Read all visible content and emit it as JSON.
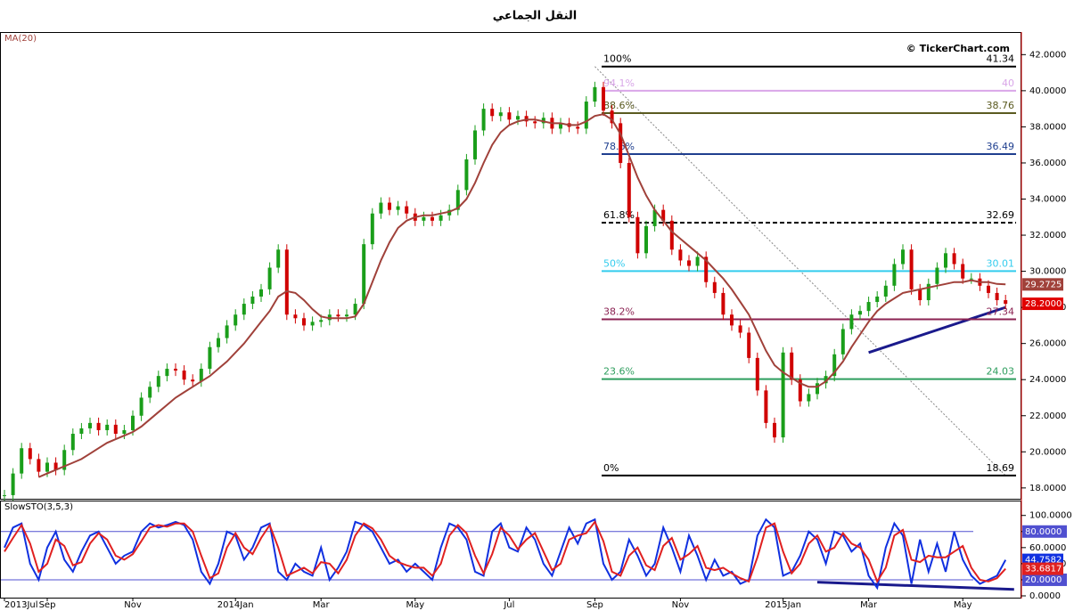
{
  "chart_data": [
    {
      "type": "candle",
      "title": "النقل الجماعي",
      "watermark": "© TickerChart.com",
      "indicator": "MA(20)",
      "ylim": [
        17.4,
        43.2
      ],
      "yticks": [
        {
          "value": 18,
          "label": "18.0000"
        },
        {
          "value": 20,
          "label": "20.0000"
        },
        {
          "value": 22,
          "label": "22.0000"
        },
        {
          "value": 24,
          "label": "24.0000"
        },
        {
          "value": 26,
          "label": "26.0000"
        },
        {
          "value": 28,
          "label": "28.0000"
        },
        {
          "value": 30,
          "label": "30.0000"
        },
        {
          "value": 32,
          "label": "32.0000"
        },
        {
          "value": 34,
          "label": "34.0000"
        },
        {
          "value": 36,
          "label": "36.0000"
        },
        {
          "value": 38,
          "label": "38.0000"
        },
        {
          "value": 40,
          "label": "40.0000"
        },
        {
          "value": 42,
          "label": "42.0000"
        }
      ],
      "xticks": [
        {
          "value": 0,
          "label": "2013Jul"
        },
        {
          "value": 5,
          "label": "Sep"
        },
        {
          "value": 15,
          "label": "Nov"
        },
        {
          "value": 27,
          "label": "2014Jan"
        },
        {
          "value": 37,
          "label": "Mar"
        },
        {
          "value": 48,
          "label": "May"
        },
        {
          "value": 59,
          "label": "Jul"
        },
        {
          "value": 69,
          "label": "Sep"
        },
        {
          "value": 79,
          "label": "Nov"
        },
        {
          "value": 91,
          "label": "2015Jan"
        },
        {
          "value": 101,
          "label": "Mar"
        },
        {
          "value": 112,
          "label": "May"
        }
      ],
      "series": [
        {
          "name": "Close",
          "up_color": "#1a9e1a",
          "down_color": "#d00000",
          "values": [
            17.6,
            18.8,
            20.2,
            19.6,
            18.9,
            19.4,
            19.0,
            20.1,
            21.0,
            21.3,
            21.6,
            21.2,
            21.5,
            21.0,
            21.2,
            22.0,
            23.0,
            23.6,
            24.2,
            24.6,
            24.5,
            24.0,
            23.9,
            24.6,
            25.8,
            26.3,
            27.0,
            27.6,
            28.2,
            28.6,
            29.0,
            30.2,
            31.2,
            27.6,
            27.4,
            27.0,
            27.2,
            27.3,
            27.6,
            27.5,
            27.6,
            28.2,
            31.5,
            33.2,
            33.8,
            33.4,
            33.6,
            33.2,
            32.8,
            33.0,
            32.8,
            33.1,
            33.4,
            34.5,
            36.2,
            37.8,
            39.0,
            38.6,
            38.8,
            38.4,
            38.6,
            38.3,
            38.2,
            38.5,
            37.9,
            38.2,
            38.0,
            37.9,
            39.4,
            40.2,
            38.9,
            38.2,
            36.0,
            33.0,
            31.0,
            32.5,
            33.4,
            32.8,
            31.2,
            30.6,
            30.3,
            30.8,
            29.4,
            28.8,
            27.6,
            27.0,
            26.6,
            25.2,
            23.4,
            21.6,
            20.8,
            25.5,
            24.0,
            22.8,
            23.2,
            23.8,
            24.2,
            25.4,
            26.8,
            27.6,
            27.8,
            28.3,
            28.6,
            29.2,
            30.4,
            31.2,
            29.0,
            28.4,
            29.3,
            30.2,
            31.0,
            30.4,
            29.6,
            29.6,
            29.2,
            28.8,
            28.4,
            28.2
          ],
          "tag": {
            "value": 28.2,
            "label": "28.2000"
          },
          "tag_color": "#e00000"
        },
        {
          "name": "MA(20)",
          "color": "#a0413a",
          "line": true,
          "values": [
            null,
            null,
            null,
            null,
            18.6,
            18.8,
            19.0,
            19.2,
            19.4,
            19.6,
            19.9,
            20.2,
            20.5,
            20.7,
            20.9,
            21.1,
            21.4,
            21.8,
            22.2,
            22.6,
            23.0,
            23.3,
            23.6,
            23.9,
            24.2,
            24.6,
            25.0,
            25.5,
            26.0,
            26.6,
            27.2,
            27.8,
            28.6,
            28.9,
            28.8,
            28.4,
            27.9,
            27.5,
            27.4,
            27.4,
            27.4,
            27.5,
            28.2,
            29.4,
            30.6,
            31.6,
            32.4,
            32.8,
            33.0,
            33.1,
            33.1,
            33.2,
            33.3,
            33.5,
            34.0,
            34.9,
            36.0,
            37.0,
            37.7,
            38.1,
            38.3,
            38.4,
            38.4,
            38.3,
            38.2,
            38.2,
            38.1,
            38.1,
            38.3,
            38.6,
            38.7,
            38.4,
            37.6,
            36.4,
            35.2,
            34.2,
            33.4,
            32.8,
            32.2,
            31.8,
            31.4,
            31.0,
            30.6,
            30.1,
            29.6,
            29.0,
            28.3,
            27.6,
            26.6,
            25.6,
            24.8,
            24.4,
            24.1,
            23.8,
            23.6,
            23.6,
            23.9,
            24.4,
            25.0,
            25.8,
            26.5,
            27.2,
            27.8,
            28.2,
            28.5,
            28.8,
            28.9,
            29.0,
            29.1,
            29.2,
            29.3,
            29.4,
            29.4,
            29.5,
            29.4,
            29.4,
            29.3,
            29.2725
          ],
          "tag": 29.2725,
          "tag_color": "#a0413a"
        }
      ],
      "levels": [
        {
          "ratio": "100%",
          "value": 41.34,
          "color": "#000000"
        },
        {
          "ratio": "94.1%",
          "value": 40,
          "color": "#d9a6e8"
        },
        {
          "ratio": "88.6%",
          "value": 38.76,
          "color": "#5a5a20"
        },
        {
          "ratio": "78.6%",
          "value": 36.49,
          "color": "#1f3f8f"
        },
        {
          "ratio": "61.8%",
          "value": 32.69,
          "color": "#000000",
          "dashed": true
        },
        {
          "ratio": "50%",
          "value": 30.01,
          "color": "#33ccee"
        },
        {
          "ratio": "38.2%",
          "value": 27.34,
          "color": "#8b2252"
        },
        {
          "ratio": "23.6%",
          "value": 24.03,
          "color": "#2e9e5e"
        },
        {
          "ratio": "0%",
          "value": 18.69,
          "color": "#000000"
        }
      ],
      "lines": [
        {
          "from": [
            69,
            41.34
          ],
          "to": [
            117,
            18.69
          ],
          "color": "#888888",
          "dashed": true
        },
        {
          "from": [
            101,
            25.5
          ],
          "to": [
            117,
            28.0
          ],
          "color": "#1a1a8c"
        }
      ]
    },
    {
      "type": "stochastic",
      "indicator": "SlowSTO(3,5,3)",
      "ylim": [
        -2.2,
        117.4
      ],
      "yticks": [
        {
          "value": 0,
          "label": "0.0000"
        },
        {
          "value": 20,
          "label": "20.0000"
        },
        {
          "value": 40,
          "label": "40.0000"
        },
        {
          "value": 60,
          "label": "60.0000"
        },
        {
          "value": 80,
          "label": "80.0000"
        },
        {
          "value": 100,
          "label": "100.0000"
        }
      ],
      "bands": [
        20,
        80
      ],
      "band_color": "#5050d0",
      "series": [
        {
          "name": "%K",
          "color": "#1030e0",
          "line": true,
          "values": [
            60,
            85,
            90,
            40,
            20,
            60,
            80,
            45,
            30,
            55,
            75,
            80,
            60,
            40,
            50,
            55,
            80,
            90,
            85,
            88,
            92,
            88,
            70,
            30,
            15,
            40,
            80,
            75,
            45,
            60,
            85,
            90,
            30,
            20,
            40,
            30,
            25,
            60,
            20,
            35,
            55,
            92,
            88,
            80,
            60,
            40,
            45,
            30,
            40,
            30,
            20,
            60,
            90,
            85,
            70,
            30,
            25,
            80,
            90,
            60,
            55,
            85,
            70,
            40,
            25,
            55,
            85,
            65,
            90,
            95,
            40,
            20,
            30,
            70,
            50,
            25,
            40,
            85,
            60,
            30,
            75,
            50,
            20,
            45,
            25,
            30,
            15,
            20,
            75,
            95,
            85,
            25,
            30,
            50,
            80,
            70,
            40,
            80,
            75,
            55,
            65,
            25,
            10,
            60,
            90,
            75,
            15,
            70,
            30,
            65,
            30,
            80,
            45,
            25,
            15,
            20,
            25,
            44.7582
          ],
          "tag": 44.7582,
          "tag_color": "#1030e0"
        },
        {
          "name": "%D",
          "color": "#e02020",
          "line": true,
          "values": [
            55,
            72,
            88,
            65,
            30,
            40,
            70,
            62,
            38,
            42,
            65,
            78,
            70,
            50,
            45,
            52,
            68,
            85,
            88,
            86,
            90,
            90,
            80,
            50,
            22,
            28,
            60,
            78,
            60,
            52,
            72,
            88,
            60,
            25,
            30,
            35,
            28,
            42,
            40,
            28,
            45,
            75,
            90,
            84,
            70,
            50,
            42,
            38,
            35,
            35,
            25,
            40,
            75,
            88,
            78,
            50,
            28,
            52,
            85,
            75,
            58,
            70,
            78,
            55,
            32,
            40,
            70,
            75,
            78,
            92,
            68,
            30,
            25,
            50,
            60,
            38,
            32,
            62,
            72,
            45,
            52,
            62,
            35,
            32,
            35,
            28,
            22,
            18,
            48,
            85,
            90,
            55,
            28,
            40,
            65,
            75,
            55,
            60,
            78,
            65,
            60,
            45,
            18,
            35,
            75,
            82,
            45,
            42,
            50,
            48,
            48,
            55,
            62,
            35,
            20,
            18,
            22,
            33.6817
          ],
          "tag": 33.6817,
          "tag_color": "#e02020"
        }
      ],
      "lines": [
        {
          "from": [
            95,
            17
          ],
          "to": [
            118,
            8
          ],
          "color": "#1a1a8c"
        }
      ]
    }
  ]
}
